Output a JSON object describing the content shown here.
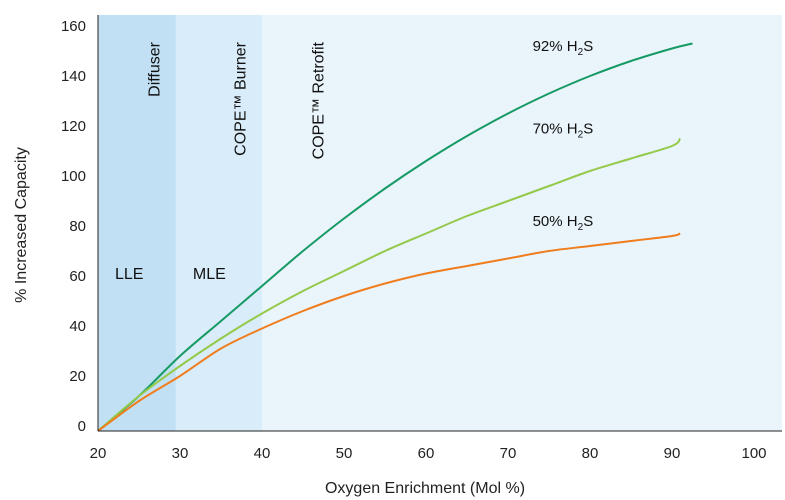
{
  "chart_data": {
    "type": "line",
    "title": "",
    "xlabel": "Oxygen Enrichment (Mol %)",
    "ylabel": "% Increased Capacity",
    "xlim": [
      20,
      100
    ],
    "ylim": [
      0,
      160
    ],
    "x_ticks": [
      "20",
      "30",
      "40",
      "50",
      "60",
      "70",
      "80",
      "90",
      "100"
    ],
    "y_ticks": [
      "0",
      "20",
      "40",
      "60",
      "80",
      "100",
      "120",
      "140",
      "160"
    ],
    "grid": false,
    "regions": [
      {
        "label": "LLE",
        "x_start": 20,
        "x_end": 29.5,
        "color": "#c2e0f4"
      },
      {
        "label": "MLE",
        "x_start": 29.5,
        "x_end": 40,
        "color": "#d9ecf9"
      },
      {
        "label": "",
        "x_start": 40,
        "x_end": 100,
        "color": "#e9f4fb"
      }
    ],
    "annotations": [
      {
        "text": "Diffuser",
        "x": 27.5,
        "y": 160
      },
      {
        "text": "COPE™ Burner",
        "x": 38,
        "y": 160
      },
      {
        "text": "COPE™ Retrofit",
        "x": 47.5,
        "y": 160
      }
    ],
    "series": [
      {
        "name": "92% H2S",
        "label": {
          "main": "92% H",
          "sub": "2",
          "tail": "S",
          "x": 73,
          "y": 150
        },
        "color": "#169a64",
        "x": [
          20,
          25,
          30,
          35,
          40,
          45,
          50,
          55,
          60,
          65,
          70,
          75,
          80,
          85,
          90,
          92.5
        ],
        "y": [
          -2,
          12,
          28,
          42,
          56,
          70,
          83,
          95,
          106,
          116,
          125,
          133,
          140,
          146,
          151,
          153
        ]
      },
      {
        "name": "70% H2S",
        "label": {
          "main": "70% H",
          "sub": "2",
          "tail": "S",
          "x": 73,
          "y": 117
        },
        "color": "#95c94a",
        "x": [
          20,
          25,
          30,
          35,
          40,
          45,
          50,
          55,
          60,
          65,
          70,
          75,
          80,
          85,
          90,
          91
        ],
        "y": [
          -2,
          12,
          24,
          35,
          45,
          54,
          62,
          70,
          77,
          84,
          90,
          96,
          102,
          107,
          112,
          115
        ]
      },
      {
        "name": "50% H2S",
        "label": {
          "main": "50% H",
          "sub": "2",
          "tail": "S",
          "x": 73,
          "y": 80
        },
        "color": "#f07d1d",
        "x": [
          20,
          25,
          30,
          35,
          40,
          45,
          50,
          55,
          60,
          65,
          70,
          75,
          80,
          85,
          90,
          91
        ],
        "y": [
          -2,
          10,
          20,
          31,
          39,
          46,
          52,
          57,
          61,
          64,
          67,
          70,
          72,
          74,
          76,
          77
        ]
      }
    ]
  }
}
